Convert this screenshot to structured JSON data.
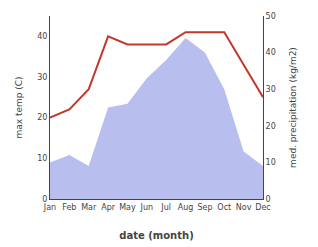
{
  "chart_data": {
    "type": "line",
    "xlabel": "date (month)",
    "ylabel": "max temp (C)",
    "y2label": "med. precipitation (kg/m2)",
    "categories": [
      "Jan",
      "Feb",
      "Mar",
      "Apr",
      "May",
      "Jun",
      "Jul",
      "Aug",
      "Sep",
      "Oct",
      "Nov",
      "Dec"
    ],
    "series": [
      {
        "type": "area",
        "axis": "y2",
        "color": "#b8bfee",
        "values": [
          10,
          12,
          9,
          25,
          26,
          33,
          38,
          44,
          40,
          30,
          13,
          9
        ]
      },
      {
        "type": "line",
        "color": "#c0392b",
        "values": [
          20,
          22,
          27,
          40,
          38,
          38,
          38,
          41,
          41,
          41,
          33,
          25
        ]
      }
    ],
    "ylim": [
      0,
      45
    ],
    "yticks": [
      0,
      10,
      20,
      30,
      40
    ],
    "y2lim": [
      0,
      50
    ],
    "y2ticks": [
      0,
      10,
      20,
      30,
      40,
      50
    ],
    "grid": false
  }
}
